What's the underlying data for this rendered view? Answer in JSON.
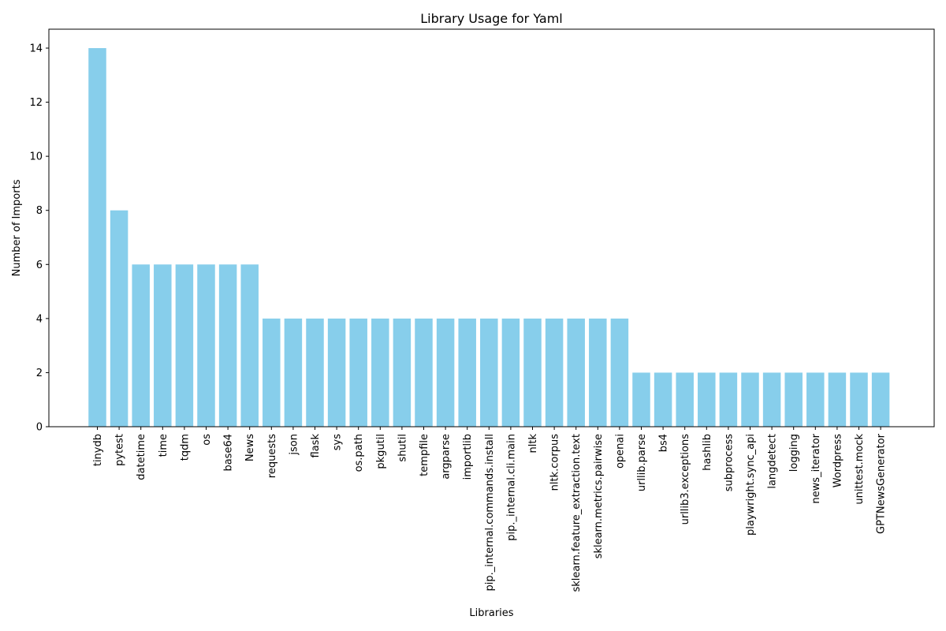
{
  "chart_data": {
    "type": "bar",
    "title": "Library Usage for Yaml",
    "xlabel": "Libraries",
    "ylabel": "Number of Imports",
    "ylim": [
      0,
      14.7
    ],
    "yticks": [
      0,
      2,
      4,
      6,
      8,
      10,
      12,
      14
    ],
    "bar_color": "#87ceeb",
    "grid": false,
    "categories": [
      "tinydb",
      "pytest",
      "datetime",
      "time",
      "tqdm",
      "os",
      "base64",
      "News",
      "requests",
      "json",
      "flask",
      "sys",
      "os.path",
      "pkgutil",
      "shutil",
      "tempfile",
      "argparse",
      "importlib",
      "pip._internal.commands.install",
      "pip._internal.cli.main",
      "nltk",
      "nltk.corpus",
      "sklearn.feature_extraction.text",
      "sklearn.metrics.pairwise",
      "openai",
      "urllib.parse",
      "bs4",
      "urllib3.exceptions",
      "hashlib",
      "subprocess",
      "playwright.sync_api",
      "langdetect",
      "logging",
      "news_iterator",
      "Wordpress",
      "unittest.mock",
      "GPTNewsGenerator"
    ],
    "values": [
      14,
      8,
      6,
      6,
      6,
      6,
      6,
      6,
      4,
      4,
      4,
      4,
      4,
      4,
      4,
      4,
      4,
      4,
      4,
      4,
      4,
      4,
      4,
      4,
      4,
      2,
      2,
      2,
      2,
      2,
      2,
      2,
      2,
      2,
      2,
      2,
      2
    ]
  }
}
